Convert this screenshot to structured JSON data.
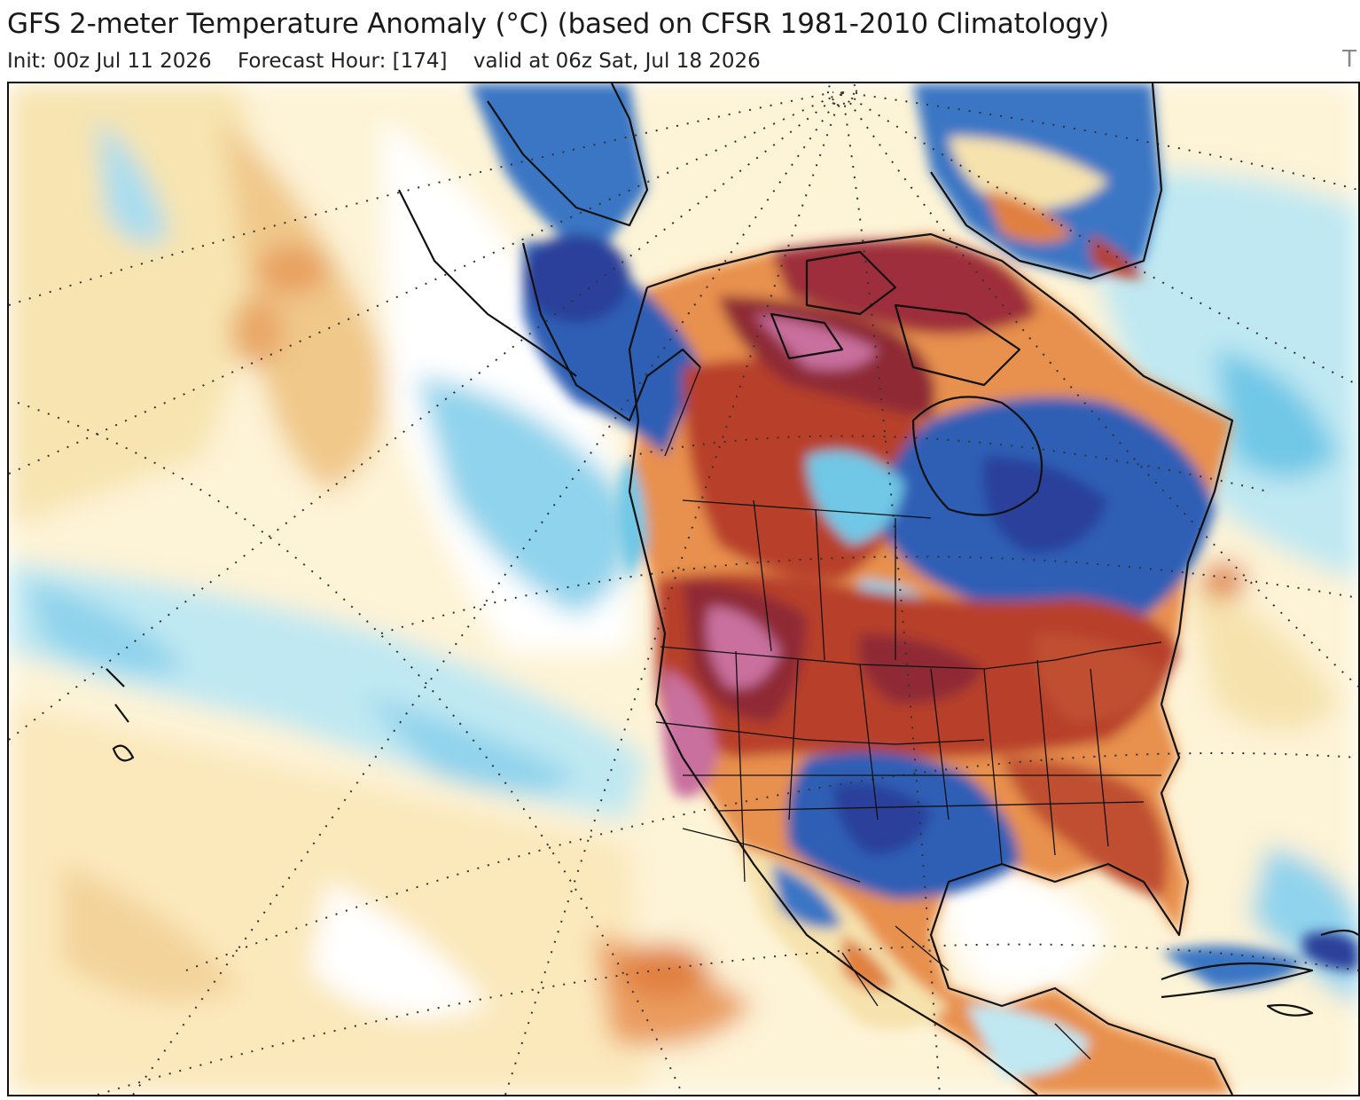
{
  "header": {
    "title": "GFS 2-meter Temperature Anomaly (°C) (based on CFSR 1981-2010 Climatology)",
    "init": "Init: 00z Jul 11 2026",
    "forecast_hour": "Forecast Hour: [174]",
    "valid": "valid at 06z Sat, Jul 18 2026",
    "corner_mark": "T"
  },
  "colors": {
    "strong_warm": "#7a1a2e",
    "warm_pink": "#c9709e",
    "warm": "#b8402a",
    "mild_warm": "#e0884a",
    "slight_warm": "#f6e2ad",
    "neutral": "#ffffff",
    "slight_cool": "#bfe8f2",
    "cool": "#6fc7e6",
    "cold": "#3a76c4",
    "very_cold": "#2a3f9a"
  }
}
